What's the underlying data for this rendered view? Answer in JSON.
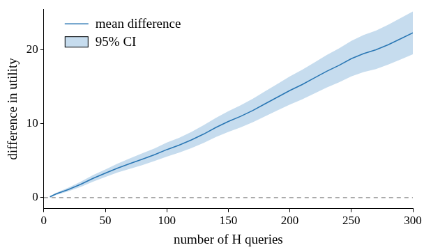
{
  "chart_data": {
    "type": "line",
    "x_label": "number of H queries",
    "y_label": "difference in utility",
    "x": [
      5,
      10,
      20,
      30,
      40,
      50,
      60,
      70,
      80,
      90,
      100,
      110,
      120,
      130,
      140,
      150,
      160,
      170,
      180,
      190,
      200,
      210,
      220,
      230,
      240,
      250,
      260,
      270,
      280,
      290,
      300
    ],
    "series": [
      {
        "name": "mean difference",
        "color": "#2a77b4",
        "line_style": "solid",
        "values": [
          0.1,
          0.5,
          1.1,
          1.8,
          2.6,
          3.3,
          4.0,
          4.6,
          5.2,
          5.8,
          6.5,
          7.1,
          7.8,
          8.6,
          9.5,
          10.3,
          11.0,
          11.8,
          12.7,
          13.6,
          14.5,
          15.3,
          16.2,
          17.1,
          17.9,
          18.8,
          19.5,
          20.0,
          20.7,
          21.5,
          22.3
        ]
      },
      {
        "name": "95% CI",
        "type": "band",
        "color": "#c6dcee",
        "lower": [
          0.0,
          0.35,
          0.85,
          1.45,
          2.15,
          2.8,
          3.4,
          3.9,
          4.4,
          4.95,
          5.55,
          6.1,
          6.7,
          7.4,
          8.2,
          8.9,
          9.5,
          10.2,
          11.0,
          11.8,
          12.6,
          13.3,
          14.1,
          14.9,
          15.6,
          16.4,
          17.0,
          17.4,
          18.0,
          18.7,
          19.4
        ],
        "upper": [
          0.2,
          0.65,
          1.35,
          2.15,
          3.05,
          3.8,
          4.6,
          5.3,
          6.0,
          6.65,
          7.45,
          8.1,
          8.9,
          9.8,
          10.8,
          11.7,
          12.5,
          13.4,
          14.4,
          15.4,
          16.4,
          17.3,
          18.3,
          19.3,
          20.2,
          21.2,
          22.0,
          22.6,
          23.4,
          24.3,
          25.2
        ]
      }
    ],
    "reference_lines": [
      {
        "value": 0,
        "line_style": "dashed",
        "color": "#888888"
      }
    ],
    "xlim": [
      0,
      300
    ],
    "xticks": [
      0,
      50,
      100,
      150,
      200,
      250,
      300
    ],
    "ylim": [
      -1.5,
      25.5
    ],
    "yticks": [
      0,
      10,
      20
    ],
    "grid": false,
    "legend": "upper left"
  }
}
